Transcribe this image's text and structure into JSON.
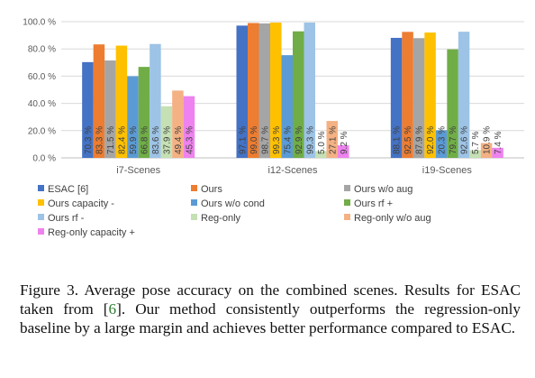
{
  "chart_data": {
    "type": "bar",
    "categories": [
      "i7-Scenes",
      "i12-Scenes",
      "i19-Scenes"
    ],
    "y_ticks": [
      "0.0 %",
      "20.0 %",
      "40.0 %",
      "60.0 %",
      "80.0 %",
      "100.0 %"
    ],
    "ylim": [
      0,
      100
    ],
    "grid": true,
    "legend_position": "bottom",
    "series": [
      {
        "name": "ESAC [6]",
        "color": "#4472C4",
        "values": [
          70.3,
          97.1,
          88.1
        ],
        "labels": [
          "70.3 %",
          "97.1 %",
          "88.1 %"
        ]
      },
      {
        "name": "Ours",
        "color": "#ED7D31",
        "values": [
          83.3,
          99.0,
          92.5
        ],
        "labels": [
          "83.3 %",
          "99.0 %",
          "92.5 %"
        ]
      },
      {
        "name": "Ours w/o aug",
        "color": "#A5A5A5",
        "values": [
          71.5,
          98.7,
          87.9
        ],
        "labels": [
          "71.5 %",
          "98.7 %",
          "87.9 %"
        ]
      },
      {
        "name": "Ours capacity -",
        "color": "#FFC000",
        "values": [
          82.4,
          99.3,
          92.0
        ],
        "labels": [
          "82.4 %",
          "99.3 %",
          "92.0 %"
        ]
      },
      {
        "name": "Ours w/o cond",
        "color": "#5B9BD5",
        "values": [
          59.9,
          75.4,
          20.3
        ],
        "labels": [
          "59.9 %",
          "75.4 %",
          "20.3 %"
        ]
      },
      {
        "name": "Ours rf +",
        "color": "#70AD47",
        "values": [
          66.8,
          92.9,
          79.7
        ],
        "labels": [
          "66.8 %",
          "92.9 %",
          "79.7 %"
        ]
      },
      {
        "name": "Ours rf -",
        "color": "#9DC3E6",
        "values": [
          83.6,
          99.3,
          92.6
        ],
        "labels": [
          "83.6 %",
          "99.3 %",
          "92.6 %"
        ]
      },
      {
        "name": "Reg-only",
        "color": "#C5E0B4",
        "values": [
          37.9,
          5.0,
          5.7
        ],
        "labels": [
          "37.9 %",
          "5.0 %",
          "5.7 %"
        ]
      },
      {
        "name": "Reg-only w/o aug",
        "color": "#F4B183",
        "values": [
          49.4,
          27.1,
          10.9
        ],
        "labels": [
          "49.4 %",
          "27.1 %",
          "10.9 %"
        ]
      },
      {
        "name": "Reg-only capacity +",
        "color": "#EE82EE",
        "values": [
          45.3,
          9.2,
          7.4
        ],
        "labels": [
          "45.3 %",
          "9.2 %",
          "7.4 %"
        ]
      }
    ]
  },
  "caption": {
    "prefix": "Figure 3. Average pose accuracy on the combined scenes. Results for ESAC taken from [",
    "ref": "6",
    "suffix": "].  Our method consistently outperforms the regression-only baseline by a large margin and achieves better performance compared to ESAC."
  }
}
